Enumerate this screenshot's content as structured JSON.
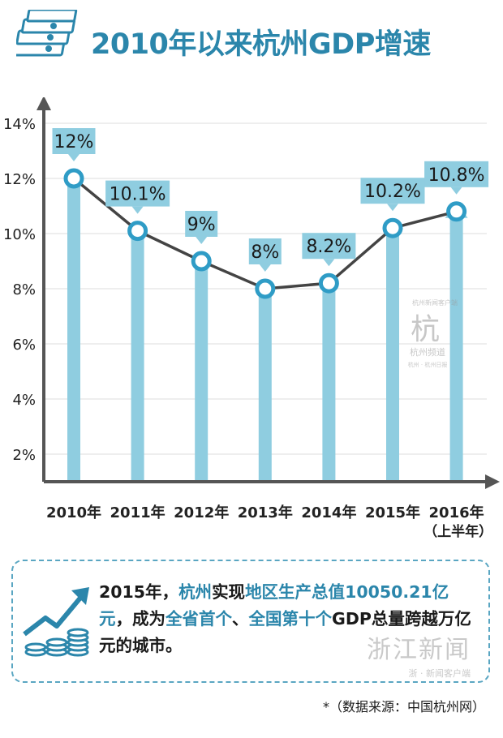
{
  "title": "2010年以来杭州GDP增速",
  "chart_data": {
    "type": "line",
    "title": "2010年以来杭州GDP增速",
    "categories": [
      "2010年",
      "2011年",
      "2012年",
      "2013年",
      "2014年",
      "2015年",
      "2016年"
    ],
    "sub_labels": [
      "",
      "",
      "",
      "",
      "",
      "",
      "（上半年）"
    ],
    "values": [
      12,
      10.1,
      9,
      8,
      8.2,
      10.2,
      10.8
    ],
    "data_labels": [
      "12%",
      "10.1%",
      "9%",
      "8%",
      "8.2%",
      "10.2%",
      "10.8%"
    ],
    "y_ticks": [
      2,
      4,
      6,
      8,
      10,
      12,
      14
    ],
    "y_tick_labels": [
      "2%",
      "4%",
      "6%",
      "8%",
      "10%",
      "12%",
      "14%"
    ],
    "ylim": [
      1,
      14.5
    ],
    "grid": true,
    "xlabel": "",
    "ylabel": ""
  },
  "info": {
    "year": "2015年，",
    "city": "杭州",
    "verb": "实现",
    "metric": "地区生产总值",
    "value": "10050.21",
    "unit": "亿元",
    "t1": "，成为",
    "h1": "全省首个",
    "t2": "、",
    "h2": "全国第十个",
    "t3": "GDP总量跨越万亿元的城市。"
  },
  "source": "*（数据来源：中国杭州网）",
  "watermarks": {
    "mid_small": "杭州新闻客户端",
    "mid_char": "杭",
    "mid_name": "杭州频道",
    "mid_sub": "杭州 · 杭州日报",
    "bottom": "浙江新闻",
    "bottom_sub": "浙 · 新闻客户端"
  },
  "colors": {
    "title": "#2b86ab",
    "bar": "#8fcde0",
    "line": "#444444",
    "marker_ring": "#2f9cc6",
    "label_bg": "#8fcde0",
    "highlight": "#2b86ab"
  }
}
